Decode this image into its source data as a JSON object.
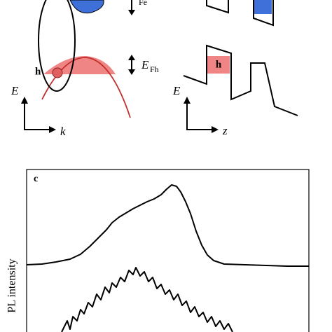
{
  "panel_b": {
    "efe_subscript": "Fe",
    "efh_symbol": "E",
    "efh_subscript": "Fh",
    "hole_label": "h",
    "left_energy_axis": "E",
    "left_momentum_axis": "k",
    "right_energy_axis": "E",
    "right_position_axis": "z",
    "well_hole_label": "h"
  },
  "panel_c": {
    "panel_label": "c",
    "y_axis_label": "PL intensity"
  }
}
